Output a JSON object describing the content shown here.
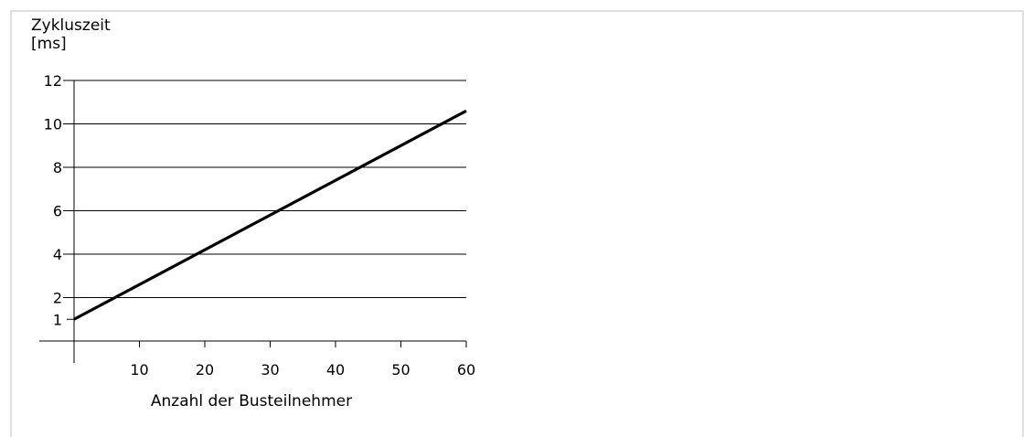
{
  "chart_data": {
    "type": "line",
    "ylabel": [
      "Zykluszeit",
      "[ms]"
    ],
    "xlabel": "Anzahl der Busteilnehmer",
    "xlim": [
      0,
      60
    ],
    "ylim": [
      0,
      12
    ],
    "x_ticks": [
      10,
      20,
      30,
      40,
      50,
      60
    ],
    "y_ticks": [
      12,
      10,
      8,
      6,
      4,
      2,
      1
    ],
    "grid": "horizontal",
    "series": [
      {
        "x": [
          0,
          60
        ],
        "y": [
          1,
          10.6
        ]
      }
    ]
  },
  "colors": {
    "frame_border": "#e0e0e0",
    "gridline": "#000000",
    "line": "#000000"
  }
}
